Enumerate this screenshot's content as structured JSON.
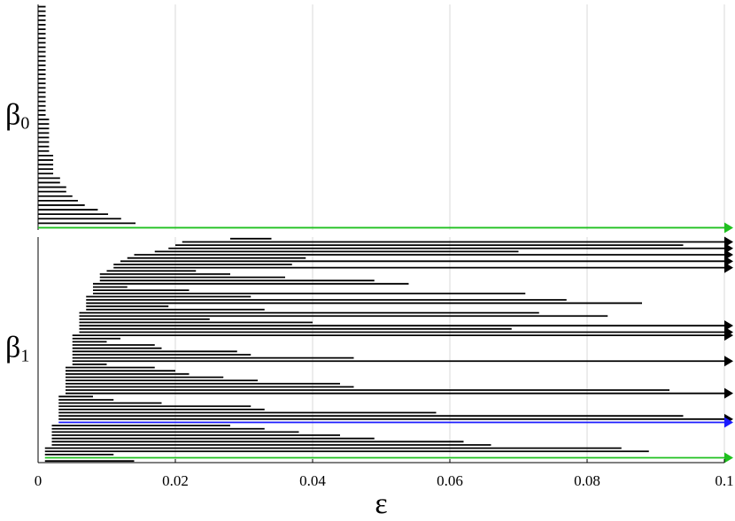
{
  "chart_data": {
    "type": "barcode",
    "xlabel": "ε",
    "xlim": [
      0,
      0.1
    ],
    "xticks": [
      0,
      0.02,
      0.04,
      0.06,
      0.08,
      0.1
    ],
    "grid": true,
    "panels": [
      {
        "label": {
          "symbol": "β",
          "subscript": "0"
        },
        "births": [
          0,
          0,
          0,
          0,
          0,
          0,
          0,
          0,
          0,
          0,
          0,
          0,
          0,
          0,
          0,
          0,
          0,
          0,
          0,
          0,
          0,
          0,
          0,
          0,
          0,
          0,
          0,
          0,
          0,
          0,
          0,
          0,
          0,
          0,
          0,
          0,
          0,
          0,
          0,
          0,
          0,
          0,
          0,
          0,
          0,
          0,
          0,
          0,
          0,
          0
        ],
        "deaths": [
          0.0011,
          0.0011,
          0.0011,
          0.0011,
          0.0011,
          0.0011,
          0.0011,
          0.0011,
          0.0011,
          0.0011,
          0.0011,
          0.0011,
          0.0011,
          0.0011,
          0.0011,
          0.0011,
          0.0011,
          0.0011,
          0.0011,
          0.0011,
          0.0011,
          0.0011,
          0.0011,
          0.0011,
          0.0011,
          0.0016,
          0.0016,
          0.0016,
          0.0016,
          0.0016,
          0.0016,
          0.0016,
          0.0016,
          0.0022,
          0.0022,
          0.0022,
          0.0022,
          0.0022,
          0.0032,
          0.0032,
          0.0041,
          0.0041,
          0.005,
          0.0058,
          0.0068,
          0.0087,
          0.0102,
          0.0121,
          0.0142,
          null
        ],
        "colors": [
          "#000",
          "#000",
          "#000",
          "#000",
          "#000",
          "#000",
          "#000",
          "#000",
          "#000",
          "#000",
          "#000",
          "#000",
          "#000",
          "#000",
          "#000",
          "#000",
          "#000",
          "#000",
          "#000",
          "#000",
          "#000",
          "#000",
          "#000",
          "#000",
          "#000",
          "#000",
          "#000",
          "#000",
          "#000",
          "#000",
          "#000",
          "#000",
          "#000",
          "#000",
          "#000",
          "#000",
          "#000",
          "#000",
          "#000",
          "#000",
          "#000",
          "#000",
          "#000",
          "#000",
          "#000",
          "#000",
          "#000",
          "#000",
          "#000",
          "#1fc01f"
        ]
      },
      {
        "label": {
          "symbol": "β",
          "subscript": "1"
        },
        "births": [
          0.028,
          0.021,
          0.02,
          0.019,
          0.017,
          0.014,
          0.013,
          0.012,
          0.011,
          0.011,
          0.01,
          0.009,
          0.009,
          0.009,
          0.008,
          0.008,
          0.008,
          0.008,
          0.007,
          0.007,
          0.007,
          0.007,
          0.007,
          0.006,
          0.006,
          0.006,
          0.006,
          0.006,
          0.006,
          0.006,
          0.005,
          0.005,
          0.005,
          0.005,
          0.005,
          0.005,
          0.005,
          0.005,
          0.005,
          0.005,
          0.004,
          0.004,
          0.004,
          0.004,
          0.004,
          0.004,
          0.004,
          0.004,
          0.004,
          0.003,
          0.003,
          0.003,
          0.003,
          0.003,
          0.003,
          0.003,
          0.003,
          0.003,
          0.002,
          0.002,
          0.002,
          0.002,
          0.002,
          0.002,
          0.002,
          0.001,
          0.001,
          0.001,
          0.001,
          0.001
        ],
        "deaths": [
          0.034,
          null,
          0.094,
          null,
          0.07,
          null,
          0.039,
          null,
          0.037,
          null,
          0.023,
          0.028,
          0.036,
          0.049,
          0.054,
          0.013,
          0.022,
          0.071,
          0.031,
          0.077,
          0.088,
          0.019,
          0.033,
          0.073,
          0.083,
          0.025,
          0.04,
          null,
          0.069,
          null,
          null,
          0.012,
          0.01,
          0.017,
          0.018,
          0.029,
          0.031,
          0.046,
          null,
          0.01,
          0.017,
          0.02,
          0.022,
          0.027,
          0.032,
          0.044,
          0.046,
          0.092,
          null,
          0.008,
          0.011,
          0.018,
          0.031,
          0.033,
          0.058,
          0.094,
          null,
          null,
          0.028,
          0.033,
          0.038,
          0.044,
          0.049,
          0.062,
          0.066,
          0.085,
          0.089,
          0.011,
          null,
          0.014
        ],
        "colors": [
          "#000",
          "#000",
          "#000",
          "#000",
          "#000",
          "#000",
          "#000",
          "#000",
          "#000",
          "#000",
          "#000",
          "#000",
          "#000",
          "#000",
          "#000",
          "#000",
          "#000",
          "#000",
          "#000",
          "#000",
          "#000",
          "#000",
          "#000",
          "#000",
          "#000",
          "#000",
          "#000",
          "#000",
          "#000",
          "#000",
          "#000",
          "#000",
          "#000",
          "#000",
          "#000",
          "#000",
          "#000",
          "#000",
          "#000",
          "#000",
          "#000",
          "#000",
          "#000",
          "#000",
          "#000",
          "#000",
          "#000",
          "#000",
          "#000",
          "#000",
          "#000",
          "#000",
          "#000",
          "#000",
          "#000",
          "#000",
          "#000",
          "#1a1aff",
          "#000",
          "#000",
          "#000",
          "#000",
          "#000",
          "#000",
          "#000",
          "#000",
          "#000",
          "#000",
          "#1fc01f",
          "#000"
        ]
      }
    ]
  }
}
